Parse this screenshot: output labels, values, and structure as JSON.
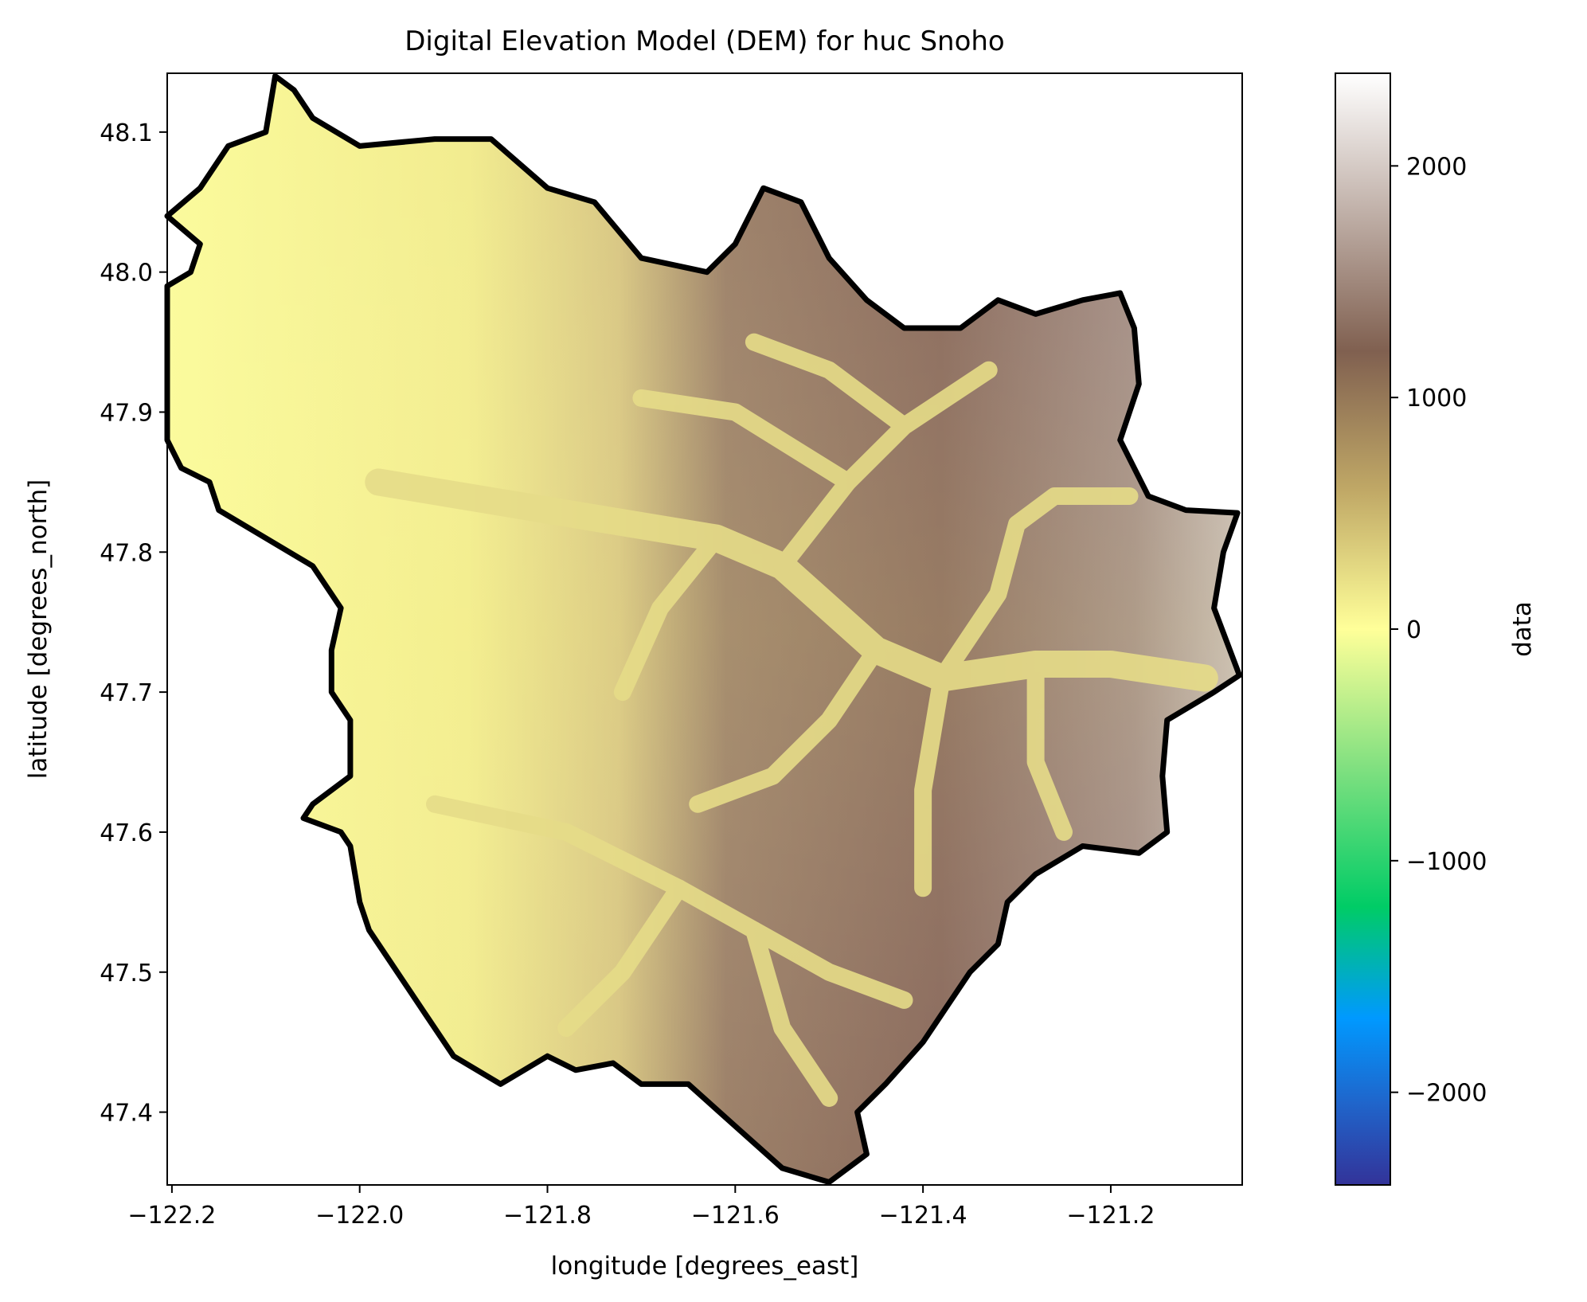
{
  "chart_data": {
    "type": "heatmap",
    "title": "Digital Elevation Model (DEM) for huc Snoho",
    "xlabel": "longitude [degrees_east]",
    "ylabel": "latitude [degrees_north]",
    "xlim": [
      -122.205,
      -121.06
    ],
    "ylim": [
      47.348,
      48.142
    ],
    "xticks": [
      -122.2,
      -122.0,
      -121.8,
      -121.6,
      -121.4,
      -121.2
    ],
    "xtick_labels": [
      "−122.2",
      "−122.0",
      "−121.8",
      "−121.6",
      "−121.4",
      "−121.2"
    ],
    "yticks": [
      47.4,
      47.5,
      47.6,
      47.7,
      47.8,
      47.9,
      48.0,
      48.1
    ],
    "ytick_labels": [
      "47.4",
      "47.5",
      "47.6",
      "47.7",
      "47.8",
      "47.9",
      "48.0",
      "48.1"
    ],
    "colorbar": {
      "label": "data",
      "range": [
        -2400,
        2400
      ],
      "colormap": "terrain",
      "ticks": [
        -2000,
        -1000,
        0,
        1000,
        2000
      ],
      "tick_labels": [
        "−2000",
        "−1000",
        "0",
        "1000",
        "2000"
      ],
      "colors": [
        "#333399",
        "#0099ff",
        "#00cc66",
        "#ffff99",
        "#806050",
        "#ffffff"
      ]
    },
    "elevation_estimate": {
      "min": 0,
      "max": 2300,
      "pattern": "low yellow lowlands in west, high brown/white mountains in east with yellow river valleys"
    },
    "boundary": {
      "name": "huc Snoho",
      "color": "#000000",
      "lonlat": [
        [
          -122.09,
          48.14
        ],
        [
          -122.07,
          48.13
        ],
        [
          -122.05,
          48.11
        ],
        [
          -122.0,
          48.09
        ],
        [
          -121.92,
          48.095
        ],
        [
          -121.86,
          48.095
        ],
        [
          -121.8,
          48.06
        ],
        [
          -121.75,
          48.05
        ],
        [
          -121.7,
          48.01
        ],
        [
          -121.63,
          48.0
        ],
        [
          -121.6,
          48.02
        ],
        [
          -121.57,
          48.06
        ],
        [
          -121.53,
          48.05
        ],
        [
          -121.5,
          48.01
        ],
        [
          -121.46,
          47.98
        ],
        [
          -121.42,
          47.96
        ],
        [
          -121.36,
          47.96
        ],
        [
          -121.32,
          47.98
        ],
        [
          -121.28,
          47.97
        ],
        [
          -121.23,
          47.98
        ],
        [
          -121.19,
          47.985
        ],
        [
          -121.175,
          47.96
        ],
        [
          -121.17,
          47.92
        ],
        [
          -121.19,
          47.88
        ],
        [
          -121.16,
          47.84
        ],
        [
          -121.12,
          47.83
        ],
        [
          -121.065,
          47.828
        ],
        [
          -121.08,
          47.8
        ],
        [
          -121.09,
          47.76
        ],
        [
          -121.063,
          47.712
        ],
        [
          -121.09,
          47.7
        ],
        [
          -121.14,
          47.68
        ],
        [
          -121.145,
          47.64
        ],
        [
          -121.14,
          47.6
        ],
        [
          -121.17,
          47.585
        ],
        [
          -121.23,
          47.59
        ],
        [
          -121.28,
          47.57
        ],
        [
          -121.31,
          47.55
        ],
        [
          -121.32,
          47.52
        ],
        [
          -121.35,
          47.5
        ],
        [
          -121.38,
          47.47
        ],
        [
          -121.4,
          47.45
        ],
        [
          -121.44,
          47.42
        ],
        [
          -121.47,
          47.4
        ],
        [
          -121.46,
          47.37
        ],
        [
          -121.5,
          47.35
        ],
        [
          -121.55,
          47.36
        ],
        [
          -121.6,
          47.39
        ],
        [
          -121.65,
          47.42
        ],
        [
          -121.7,
          47.42
        ],
        [
          -121.73,
          47.435
        ],
        [
          -121.77,
          47.43
        ],
        [
          -121.8,
          47.44
        ],
        [
          -121.85,
          47.42
        ],
        [
          -121.9,
          47.44
        ],
        [
          -121.93,
          47.47
        ],
        [
          -121.96,
          47.5
        ],
        [
          -121.99,
          47.53
        ],
        [
          -122.0,
          47.55
        ],
        [
          -122.01,
          47.59
        ],
        [
          -122.02,
          47.6
        ],
        [
          -122.06,
          47.61
        ],
        [
          -122.05,
          47.62
        ],
        [
          -122.01,
          47.64
        ],
        [
          -122.01,
          47.68
        ],
        [
          -122.03,
          47.7
        ],
        [
          -122.03,
          47.73
        ],
        [
          -122.02,
          47.76
        ],
        [
          -122.05,
          47.79
        ],
        [
          -122.1,
          47.81
        ],
        [
          -122.15,
          47.83
        ],
        [
          -122.16,
          47.85
        ],
        [
          -122.19,
          47.86
        ],
        [
          -122.205,
          47.88
        ],
        [
          -122.205,
          47.99
        ],
        [
          -122.18,
          48.0
        ],
        [
          -122.17,
          48.02
        ],
        [
          -122.205,
          48.04
        ],
        [
          -122.17,
          48.06
        ],
        [
          -122.14,
          48.09
        ],
        [
          -122.1,
          48.1
        ]
      ]
    }
  }
}
